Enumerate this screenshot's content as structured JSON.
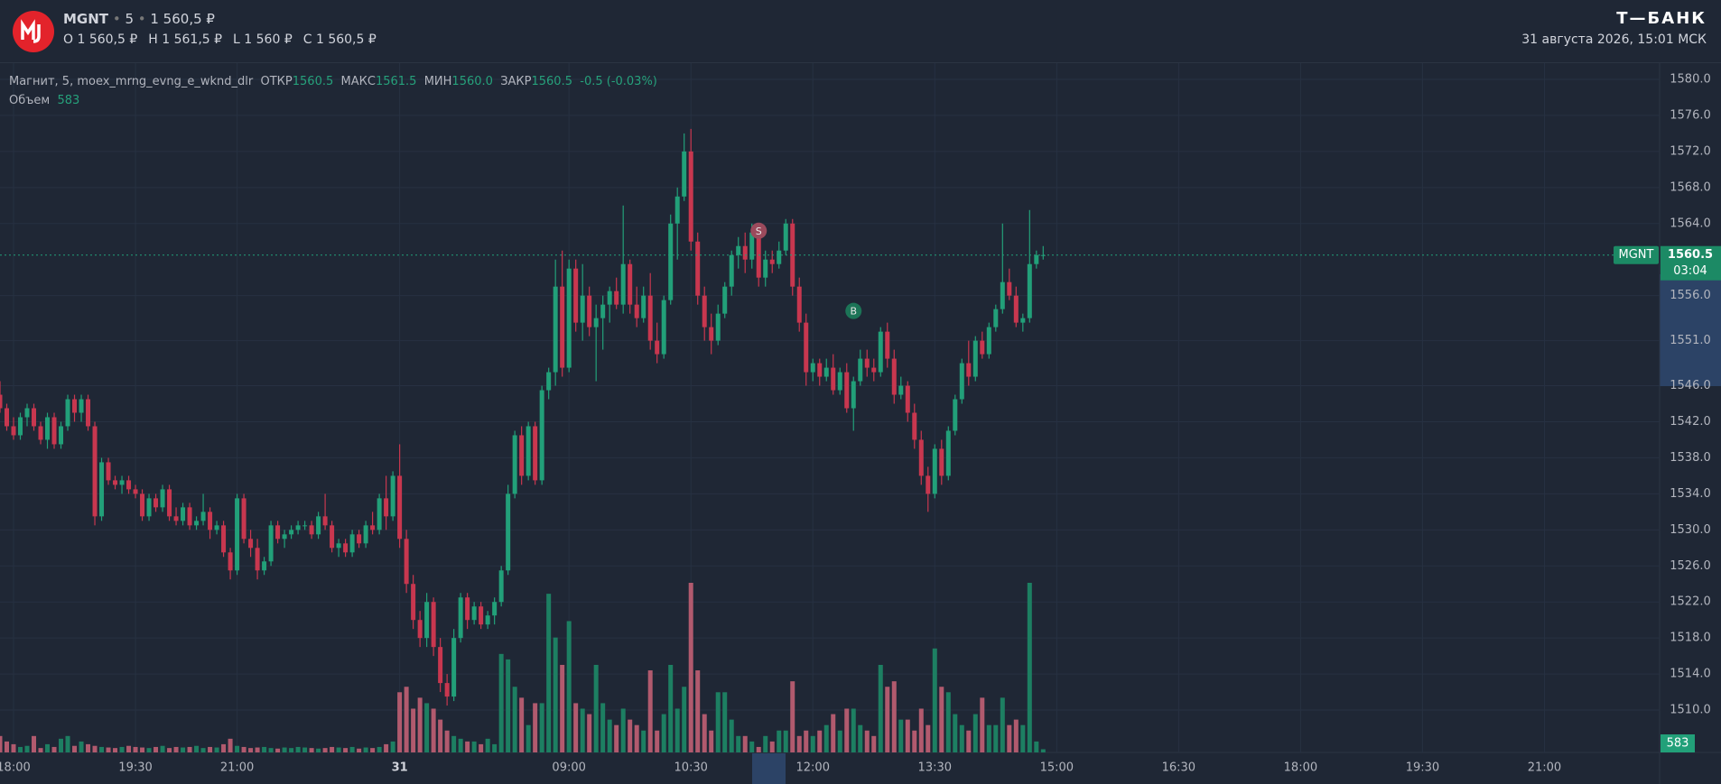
{
  "header": {
    "symbol": "MGNT",
    "interval": "5",
    "price": "1 560,5 ₽",
    "ohlc": [
      "O 1 560,5 ₽",
      "H 1 561,5 ₽",
      "L 1 560 ₽",
      "C 1 560,5 ₽"
    ],
    "brand": "Т—БАНК",
    "datetime": "31 августа 2026, 15:01 МСК"
  },
  "chart_data": {
    "type": "candlestick",
    "legend": {
      "name": "Магнит, 5, moex_mrng_evng_e_wknd_dlr",
      "fields": [
        {
          "label": "ОТКР",
          "value": "1560.5"
        },
        {
          "label": "МАКС",
          "value": "1561.5"
        },
        {
          "label": "МИН",
          "value": "1560.0"
        },
        {
          "label": "ЗАКР",
          "value": "1560.5"
        }
      ],
      "change": "-0.5 (-0.03%)",
      "volume_label": "Объем"
    },
    "candles": [
      [
        1545,
        1546.5,
        1543,
        1543.5
      ],
      [
        1543.5,
        1544,
        1541,
        1541.5
      ],
      [
        1541.5,
        1542.5,
        1540,
        1540.5
      ],
      [
        1540.5,
        1543,
        1540,
        1542.5
      ],
      [
        1542.5,
        1544,
        1541.5,
        1543.5
      ],
      [
        1543.5,
        1544,
        1541,
        1541.5
      ],
      [
        1541.5,
        1542,
        1539.5,
        1540
      ],
      [
        1540,
        1543,
        1539,
        1542.5
      ],
      [
        1542.5,
        1543,
        1539,
        1539.5
      ],
      [
        1539.5,
        1542,
        1539,
        1541.5
      ],
      [
        1541.5,
        1545,
        1541,
        1544.5
      ],
      [
        1544.5,
        1545,
        1542,
        1543
      ],
      [
        1543,
        1545,
        1542,
        1544.5
      ],
      [
        1544.5,
        1545,
        1541,
        1541.5
      ],
      [
        1541.5,
        1542,
        1530.5,
        1531.5
      ],
      [
        1531.5,
        1538,
        1531,
        1537.5
      ],
      [
        1537.5,
        1538,
        1535,
        1535.5
      ],
      [
        1535.5,
        1536,
        1534.5,
        1535
      ],
      [
        1535,
        1536,
        1534,
        1535.5
      ],
      [
        1535.5,
        1536,
        1534,
        1534.5
      ],
      [
        1534.5,
        1535,
        1533.5,
        1534
      ],
      [
        1534,
        1534.5,
        1531,
        1531.5
      ],
      [
        1531.5,
        1534,
        1531,
        1533.5
      ],
      [
        1533.5,
        1534,
        1532,
        1532.5
      ],
      [
        1532.5,
        1535,
        1532,
        1534.5
      ],
      [
        1534.5,
        1535,
        1531,
        1531.5
      ],
      [
        1531.5,
        1532.5,
        1530.5,
        1531
      ],
      [
        1531,
        1533,
        1530.5,
        1532.5
      ],
      [
        1532.5,
        1533,
        1530,
        1530.5
      ],
      [
        1530.5,
        1531.5,
        1530,
        1531
      ],
      [
        1531,
        1534,
        1530.5,
        1532
      ],
      [
        1532,
        1532.5,
        1529,
        1530
      ],
      [
        1530,
        1531,
        1529.5,
        1530.5
      ],
      [
        1530.5,
        1531,
        1527,
        1527.5
      ],
      [
        1527.5,
        1528,
        1524.5,
        1525.5
      ],
      [
        1525.5,
        1534,
        1525,
        1533.5
      ],
      [
        1533.5,
        1534,
        1528.5,
        1529
      ],
      [
        1529,
        1530,
        1527,
        1528
      ],
      [
        1528,
        1529,
        1524.5,
        1525.5
      ],
      [
        1525.5,
        1527,
        1525,
        1526.5
      ],
      [
        1526.5,
        1531,
        1526,
        1530.5
      ],
      [
        1530.5,
        1531,
        1528.5,
        1529
      ],
      [
        1529,
        1530,
        1528,
        1529.5
      ],
      [
        1529.5,
        1530.5,
        1529,
        1530
      ],
      [
        1530,
        1531,
        1529.5,
        1530.5
      ],
      [
        1530.5,
        1531,
        1530,
        1530.5
      ],
      [
        1530.5,
        1531,
        1529,
        1529.5
      ],
      [
        1529.5,
        1532,
        1529,
        1531.5
      ],
      [
        1531.5,
        1534,
        1530,
        1530.5
      ],
      [
        1530.5,
        1531,
        1527.5,
        1528
      ],
      [
        1528,
        1529,
        1527,
        1528.5
      ],
      [
        1528.5,
        1529,
        1527,
        1527.5
      ],
      [
        1527.5,
        1530,
        1527,
        1529.5
      ],
      [
        1529.5,
        1530,
        1528,
        1528.5
      ],
      [
        1528.5,
        1531,
        1528,
        1530.5
      ],
      [
        1530.5,
        1532,
        1529.5,
        1530
      ],
      [
        1530,
        1534,
        1529.5,
        1533.5
      ],
      [
        1533.5,
        1536,
        1530,
        1531.5
      ],
      [
        1531.5,
        1536.5,
        1531,
        1536
      ],
      [
        1536,
        1539.5,
        1528,
        1529
      ],
      [
        1529,
        1530,
        1523,
        1524
      ],
      [
        1524,
        1525,
        1519,
        1520
      ],
      [
        1520,
        1521,
        1517,
        1518
      ],
      [
        1518,
        1523,
        1517,
        1522
      ],
      [
        1522,
        1522.5,
        1516,
        1517
      ],
      [
        1517,
        1518,
        1512,
        1513
      ],
      [
        1513,
        1514,
        1510.5,
        1511.5
      ],
      [
        1511.5,
        1519,
        1511,
        1518
      ],
      [
        1518,
        1523,
        1517.5,
        1522.5
      ],
      [
        1522.5,
        1523,
        1519,
        1520
      ],
      [
        1520,
        1522,
        1519.5,
        1521.5
      ],
      [
        1521.5,
        1522,
        1519,
        1519.5
      ],
      [
        1519.5,
        1521,
        1519,
        1520.5
      ],
      [
        1520.5,
        1522.5,
        1519.5,
        1522
      ],
      [
        1522,
        1526,
        1521.5,
        1525.5
      ],
      [
        1525.5,
        1535,
        1525,
        1534
      ],
      [
        1534,
        1541,
        1533.5,
        1540.5
      ],
      [
        1540.5,
        1541.5,
        1535,
        1536
      ],
      [
        1536,
        1542,
        1535.5,
        1541.5
      ],
      [
        1541.5,
        1542,
        1535,
        1535.5
      ],
      [
        1535.5,
        1546,
        1535,
        1545.5
      ],
      [
        1545.5,
        1548,
        1544.5,
        1547.5
      ],
      [
        1547.5,
        1560,
        1546,
        1557
      ],
      [
        1557,
        1561,
        1547,
        1548
      ],
      [
        1548,
        1560,
        1547.5,
        1559
      ],
      [
        1559,
        1560,
        1552,
        1553
      ],
      [
        1553,
        1559.5,
        1551,
        1556
      ],
      [
        1556,
        1557,
        1551.5,
        1552.5
      ],
      [
        1552.5,
        1555,
        1546.5,
        1553.5
      ],
      [
        1553.5,
        1556,
        1550,
        1555
      ],
      [
        1555,
        1557,
        1553,
        1556.5
      ],
      [
        1556.5,
        1558,
        1554.5,
        1555
      ],
      [
        1555,
        1566,
        1554,
        1559.5
      ],
      [
        1559.5,
        1560,
        1554,
        1555
      ],
      [
        1555,
        1557,
        1552.5,
        1553.5
      ],
      [
        1553.5,
        1557,
        1553,
        1556
      ],
      [
        1556,
        1558.5,
        1550,
        1551
      ],
      [
        1551,
        1553,
        1548.5,
        1549.5
      ],
      [
        1549.5,
        1556,
        1549,
        1555.5
      ],
      [
        1555.5,
        1565,
        1555,
        1564
      ],
      [
        1564,
        1568,
        1560,
        1567
      ],
      [
        1567,
        1574,
        1566.5,
        1572
      ],
      [
        1572,
        1574.5,
        1561,
        1562
      ],
      [
        1562,
        1563,
        1555,
        1556
      ],
      [
        1556,
        1557,
        1551,
        1552.5
      ],
      [
        1552.5,
        1554,
        1549.5,
        1551
      ],
      [
        1551,
        1555,
        1550.5,
        1554
      ],
      [
        1554,
        1557.5,
        1553.5,
        1557
      ],
      [
        1557,
        1561,
        1556,
        1560.5
      ],
      [
        1560.5,
        1562.5,
        1559,
        1561.5
      ],
      [
        1561.5,
        1563,
        1558.5,
        1560
      ],
      [
        1560,
        1564,
        1559,
        1563
      ],
      [
        1563,
        1563.5,
        1557,
        1558
      ],
      [
        1558,
        1561,
        1557,
        1560
      ],
      [
        1560,
        1561,
        1558.5,
        1559.5
      ],
      [
        1559.5,
        1562,
        1559,
        1561
      ],
      [
        1561,
        1564.5,
        1560.5,
        1564
      ],
      [
        1564,
        1564.5,
        1556,
        1557
      ],
      [
        1557,
        1558,
        1552,
        1553
      ],
      [
        1553,
        1554,
        1546,
        1547.5
      ],
      [
        1547.5,
        1549,
        1546.5,
        1548.5
      ],
      [
        1548.5,
        1549,
        1546,
        1547
      ],
      [
        1547,
        1549,
        1546.5,
        1548
      ],
      [
        1548,
        1549.5,
        1545,
        1545.5
      ],
      [
        1545.5,
        1548,
        1545,
        1547.5
      ],
      [
        1547.5,
        1548.5,
        1543,
        1543.5
      ],
      [
        1543.5,
        1547,
        1541,
        1546.5
      ],
      [
        1546.5,
        1550,
        1546,
        1549
      ],
      [
        1549,
        1550,
        1547,
        1548
      ],
      [
        1548,
        1549,
        1546.5,
        1547.5
      ],
      [
        1547.5,
        1552.5,
        1547,
        1552
      ],
      [
        1552,
        1553,
        1548,
        1549
      ],
      [
        1549,
        1550,
        1544,
        1545
      ],
      [
        1545,
        1547,
        1544.5,
        1546
      ],
      [
        1546,
        1546.5,
        1542,
        1543
      ],
      [
        1543,
        1544,
        1539,
        1540
      ],
      [
        1540,
        1541,
        1535,
        1536
      ],
      [
        1536,
        1537,
        1532,
        1534
      ],
      [
        1534,
        1539.5,
        1533.5,
        1539
      ],
      [
        1539,
        1540,
        1535,
        1536
      ],
      [
        1536,
        1541.5,
        1535.5,
        1541
      ],
      [
        1541,
        1545,
        1540.5,
        1544.5
      ],
      [
        1544.5,
        1549,
        1544,
        1548.5
      ],
      [
        1548.5,
        1551,
        1546,
        1547
      ],
      [
        1547,
        1551.5,
        1546.5,
        1551
      ],
      [
        1551,
        1552,
        1549,
        1549.5
      ],
      [
        1549.5,
        1553,
        1549,
        1552.5
      ],
      [
        1552.5,
        1555,
        1552,
        1554.5
      ],
      [
        1554.5,
        1564,
        1554,
        1557.5
      ],
      [
        1557.5,
        1559,
        1555.5,
        1556
      ],
      [
        1556,
        1557,
        1552.5,
        1553
      ],
      [
        1553,
        1554,
        1552,
        1553.5
      ],
      [
        1553.5,
        1565.5,
        1553,
        1559.5
      ],
      [
        1559.5,
        1561,
        1559,
        1560.5
      ],
      [
        1560.5,
        1561.5,
        1560,
        1560.5
      ]
    ],
    "volumes": [
      3000,
      2000,
      1500,
      1000,
      1200,
      3000,
      800,
      1500,
      1000,
      2500,
      3000,
      1200,
      2000,
      1500,
      1200,
      1000,
      900,
      800,
      1000,
      1200,
      1000,
      900,
      800,
      1000,
      1200,
      800,
      1000,
      900,
      1000,
      1200,
      800,
      1000,
      900,
      1500,
      2500,
      1200,
      1000,
      800,
      900,
      1000,
      800,
      700,
      900,
      800,
      1000,
      900,
      800,
      700,
      800,
      1000,
      900,
      800,
      1000,
      700,
      900,
      800,
      1000,
      1500,
      2000,
      11000,
      12000,
      8000,
      10000,
      9000,
      8000,
      6000,
      4000,
      3000,
      2500,
      2000,
      2000,
      1500,
      2500,
      1500,
      18000,
      17000,
      12000,
      10000,
      5000,
      9000,
      9000,
      29000,
      21000,
      16000,
      24000,
      9000,
      8000,
      7000,
      16000,
      9000,
      6000,
      5000,
      8000,
      6000,
      5000,
      4000,
      15000,
      4000,
      7000,
      16000,
      8000,
      12000,
      31000,
      15000,
      7000,
      4000,
      11000,
      11000,
      6000,
      3000,
      3000,
      2000,
      1000,
      3000,
      2000,
      4000,
      4000,
      13000,
      3000,
      4000,
      3000,
      4000,
      5000,
      7000,
      4000,
      8000,
      8000,
      5000,
      4000,
      3000,
      16000,
      12000,
      13000,
      6000,
      6000,
      4000,
      8000,
      5000,
      19000,
      12000,
      11000,
      7000,
      5000,
      4000,
      7000,
      10000,
      5000,
      5000,
      10000,
      5000,
      6000,
      5000,
      31000,
      2000,
      583
    ],
    "xlim": [
      0,
      245
    ],
    "xticks": [
      {
        "value": 2,
        "label": "18:00"
      },
      {
        "value": 20,
        "label": "19:30"
      },
      {
        "value": 35,
        "label": "21:00"
      },
      {
        "value": 59,
        "label": "31",
        "bold": true
      },
      {
        "value": 84,
        "label": "09:00"
      },
      {
        "value": 102,
        "label": "10:30"
      },
      {
        "value": 120,
        "label": "12:00"
      },
      {
        "value": 138,
        "label": "13:30"
      },
      {
        "value": 156,
        "label": "15:00"
      },
      {
        "value": 174,
        "label": "16:30"
      },
      {
        "value": 192,
        "label": "18:00"
      },
      {
        "value": 210,
        "label": "19:30"
      },
      {
        "value": 228,
        "label": "21:00"
      }
    ],
    "ylim": [
      1505.3,
      1581.8
    ],
    "yticks": [
      {
        "value": 1580,
        "label": "1580.0"
      },
      {
        "value": 1576,
        "label": "1576.0"
      },
      {
        "value": 1572,
        "label": "1572.0"
      },
      {
        "value": 1568,
        "label": "1568.0"
      },
      {
        "value": 1564,
        "label": "1564.0"
      },
      {
        "value": 1556,
        "label": "1556.0"
      },
      {
        "value": 1551,
        "label": "1551.0"
      },
      {
        "value": 1546,
        "label": "1546.0"
      },
      {
        "value": 1542,
        "label": "1542.0"
      },
      {
        "value": 1538,
        "label": "1538.0"
      },
      {
        "value": 1534,
        "label": "1534.0"
      },
      {
        "value": 1530,
        "label": "1530.0"
      },
      {
        "value": 1526,
        "label": "1526.0"
      },
      {
        "value": 1522,
        "label": "1522.0"
      },
      {
        "value": 1518,
        "label": "1518.0"
      },
      {
        "value": 1514,
        "label": "1514.0"
      },
      {
        "value": 1510,
        "label": "1510.0"
      }
    ],
    "grid": true,
    "up_color": "#22a079",
    "down_color": "#c8374f",
    "volume_up_color": "#1d7f62",
    "volume_down_color": "#b15a6e",
    "symbol_label": "MGNT",
    "last_price": 1560.5,
    "countdown": "03:04",
    "markers": [
      {
        "label": "S",
        "x": 112,
        "y": 1563.2,
        "color": "#9b4a5c"
      },
      {
        "label": "B",
        "x": 126,
        "y": 1554.3,
        "color": "#1c7457"
      }
    ]
  }
}
